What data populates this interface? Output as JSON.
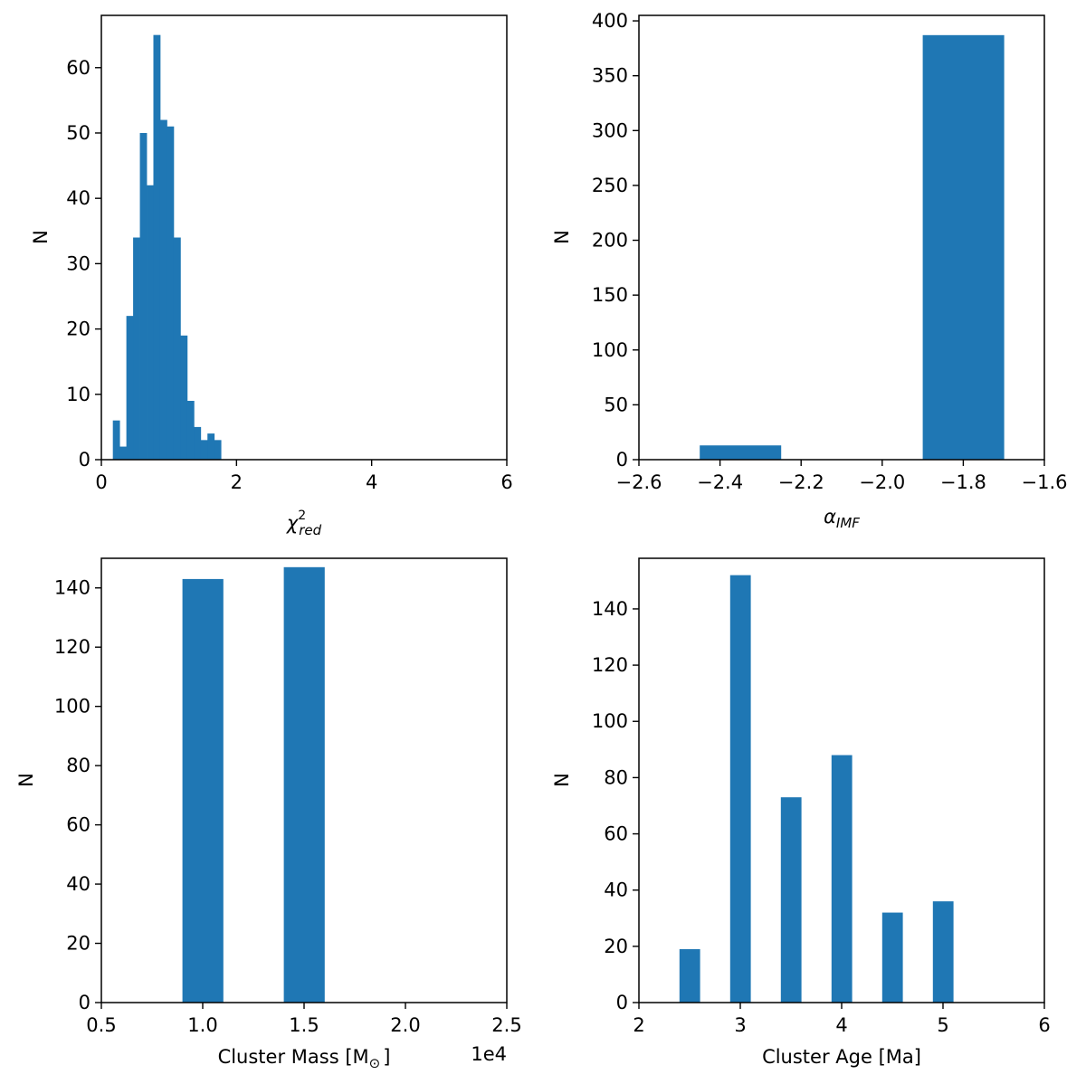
{
  "chart_data": [
    {
      "type": "bar",
      "subtype": "histogram",
      "xlabel": {
        "main": "χ",
        "sup": "2",
        "sub": "red"
      },
      "ylabel": "N",
      "xlim": [
        0,
        6
      ],
      "ylim": [
        0,
        68
      ],
      "xticks": [
        0,
        2,
        4,
        6
      ],
      "xtick_labels": [
        "0",
        "2",
        "4",
        "6"
      ],
      "yticks": [
        0,
        10,
        20,
        30,
        40,
        50,
        60
      ],
      "ytick_labels": [
        "0",
        "10",
        "20",
        "30",
        "40",
        "50",
        "60"
      ],
      "bins": [
        {
          "x0": 0.17,
          "x1": 0.27,
          "value": 6
        },
        {
          "x0": 0.27,
          "x1": 0.37,
          "value": 2
        },
        {
          "x0": 0.37,
          "x1": 0.47,
          "value": 22
        },
        {
          "x0": 0.47,
          "x1": 0.57,
          "value": 34
        },
        {
          "x0": 0.57,
          "x1": 0.67,
          "value": 50
        },
        {
          "x0": 0.67,
          "x1": 0.77,
          "value": 42
        },
        {
          "x0": 0.77,
          "x1": 0.87,
          "value": 65
        },
        {
          "x0": 0.87,
          "x1": 0.97,
          "value": 52
        },
        {
          "x0": 0.97,
          "x1": 1.07,
          "value": 51
        },
        {
          "x0": 1.07,
          "x1": 1.17,
          "value": 34
        },
        {
          "x0": 1.17,
          "x1": 1.27,
          "value": 19
        },
        {
          "x0": 1.27,
          "x1": 1.37,
          "value": 9
        },
        {
          "x0": 1.37,
          "x1": 1.47,
          "value": 5
        },
        {
          "x0": 1.47,
          "x1": 1.57,
          "value": 3
        },
        {
          "x0": 1.57,
          "x1": 1.67,
          "value": 4
        },
        {
          "x0": 1.67,
          "x1": 1.77,
          "value": 3
        }
      ],
      "color": "#1f77b4"
    },
    {
      "type": "bar",
      "subtype": "histogram",
      "xlabel": {
        "main": "α",
        "sub": "IMF"
      },
      "ylabel": "N",
      "xlim": [
        -2.6,
        -1.6
      ],
      "ylim": [
        0,
        405
      ],
      "xticks": [
        -2.6,
        -2.4,
        -2.2,
        -2.0,
        -1.8,
        -1.6
      ],
      "xtick_labels": [
        "−2.6",
        "−2.4",
        "−2.2",
        "−2.0",
        "−1.8",
        "−1.6"
      ],
      "yticks": [
        0,
        50,
        100,
        150,
        200,
        250,
        300,
        350,
        400
      ],
      "ytick_labels": [
        "0",
        "50",
        "100",
        "150",
        "200",
        "250",
        "300",
        "350",
        "400"
      ],
      "bins": [
        {
          "x0": -2.45,
          "x1": -2.25,
          "value": 13
        },
        {
          "x0": -1.9,
          "x1": -1.7,
          "value": 387
        }
      ],
      "color": "#1f77b4"
    },
    {
      "type": "bar",
      "subtype": "histogram",
      "xlabel": {
        "main": "Cluster Mass [M",
        "sub": "⊙",
        "tail": "]"
      },
      "ylabel": "N",
      "offset_text": "1e4",
      "xlim": [
        0.5,
        2.5
      ],
      "ylim": [
        0,
        150
      ],
      "xticks": [
        0.5,
        1.0,
        1.5,
        2.0,
        2.5
      ],
      "xtick_labels": [
        "0.5",
        "1.0",
        "1.5",
        "2.0",
        "2.5"
      ],
      "yticks": [
        0,
        20,
        40,
        60,
        80,
        100,
        120,
        140
      ],
      "ytick_labels": [
        "0",
        "20",
        "40",
        "60",
        "80",
        "100",
        "120",
        "140"
      ],
      "bins": [
        {
          "x0": 0.9,
          "x1": 1.1,
          "value": 143
        },
        {
          "x0": 1.4,
          "x1": 1.6,
          "value": 147
        }
      ],
      "color": "#1f77b4"
    },
    {
      "type": "bar",
      "subtype": "histogram",
      "xlabel": {
        "main": "Cluster Age [Ma]"
      },
      "ylabel": "N",
      "xlim": [
        2,
        6
      ],
      "ylim": [
        0,
        158
      ],
      "xticks": [
        2,
        3,
        4,
        5,
        6
      ],
      "xtick_labels": [
        "2",
        "3",
        "4",
        "5",
        "6"
      ],
      "yticks": [
        0,
        20,
        40,
        60,
        80,
        100,
        120,
        140
      ],
      "ytick_labels": [
        "0",
        "20",
        "40",
        "60",
        "80",
        "100",
        "120",
        "140"
      ],
      "bins": [
        {
          "x0": 2.4,
          "x1": 2.6,
          "value": 19
        },
        {
          "x0": 2.9,
          "x1": 3.1,
          "value": 152
        },
        {
          "x0": 3.4,
          "x1": 3.6,
          "value": 73
        },
        {
          "x0": 3.9,
          "x1": 4.1,
          "value": 88
        },
        {
          "x0": 4.4,
          "x1": 4.6,
          "value": 32
        },
        {
          "x0": 4.9,
          "x1": 5.1,
          "value": 36
        }
      ],
      "color": "#1f77b4"
    }
  ]
}
